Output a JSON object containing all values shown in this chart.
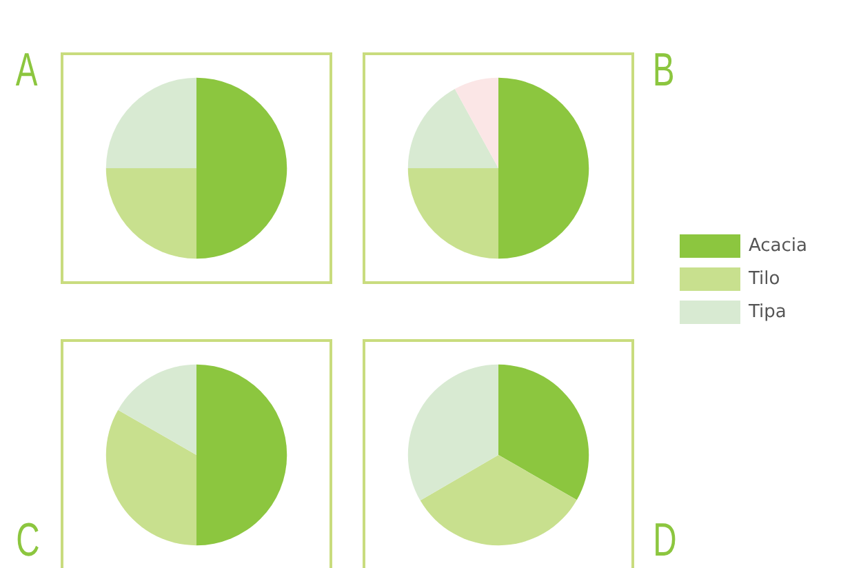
{
  "chart_data": [
    {
      "type": "pie",
      "title": "A",
      "categories": [
        null,
        null,
        null
      ],
      "values": [
        50,
        25,
        25
      ],
      "colors": [
        "#8cc63f",
        "#c8e08e",
        "#d8ead2"
      ]
    },
    {
      "type": "pie",
      "title": "B",
      "categories": [
        "Acacia",
        "Tilo",
        "Tipa",
        null
      ],
      "values": [
        50,
        25,
        17,
        8
      ],
      "colors": [
        "#8cc63f",
        "#c8e08e",
        "#d8ead2",
        "#fbe6e6"
      ],
      "legend": "right"
    },
    {
      "type": "pie",
      "title": "C",
      "categories": [
        null,
        null,
        null
      ],
      "values": [
        50,
        33.3,
        16.7
      ],
      "colors": [
        "#8cc63f",
        "#c8e08e",
        "#d8ead2"
      ]
    },
    {
      "type": "pie",
      "title": "D",
      "categories": [
        null,
        null,
        null
      ],
      "values": [
        33.3,
        33.3,
        33.4
      ],
      "colors": [
        "#8cc63f",
        "#c8e08e",
        "#d8ead2"
      ]
    }
  ]
}
